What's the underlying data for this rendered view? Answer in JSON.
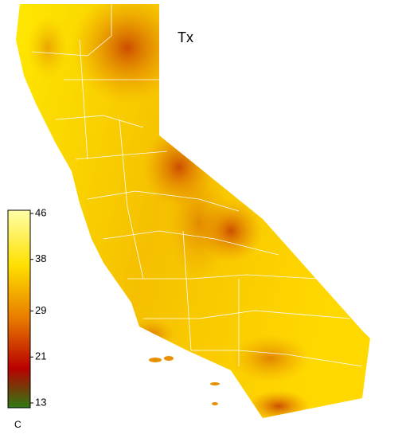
{
  "title": "Tx",
  "colorbar": {
    "unit": "C",
    "lim": [
      13,
      46
    ],
    "ticks": [
      46,
      38,
      29,
      21,
      13
    ]
  }
}
